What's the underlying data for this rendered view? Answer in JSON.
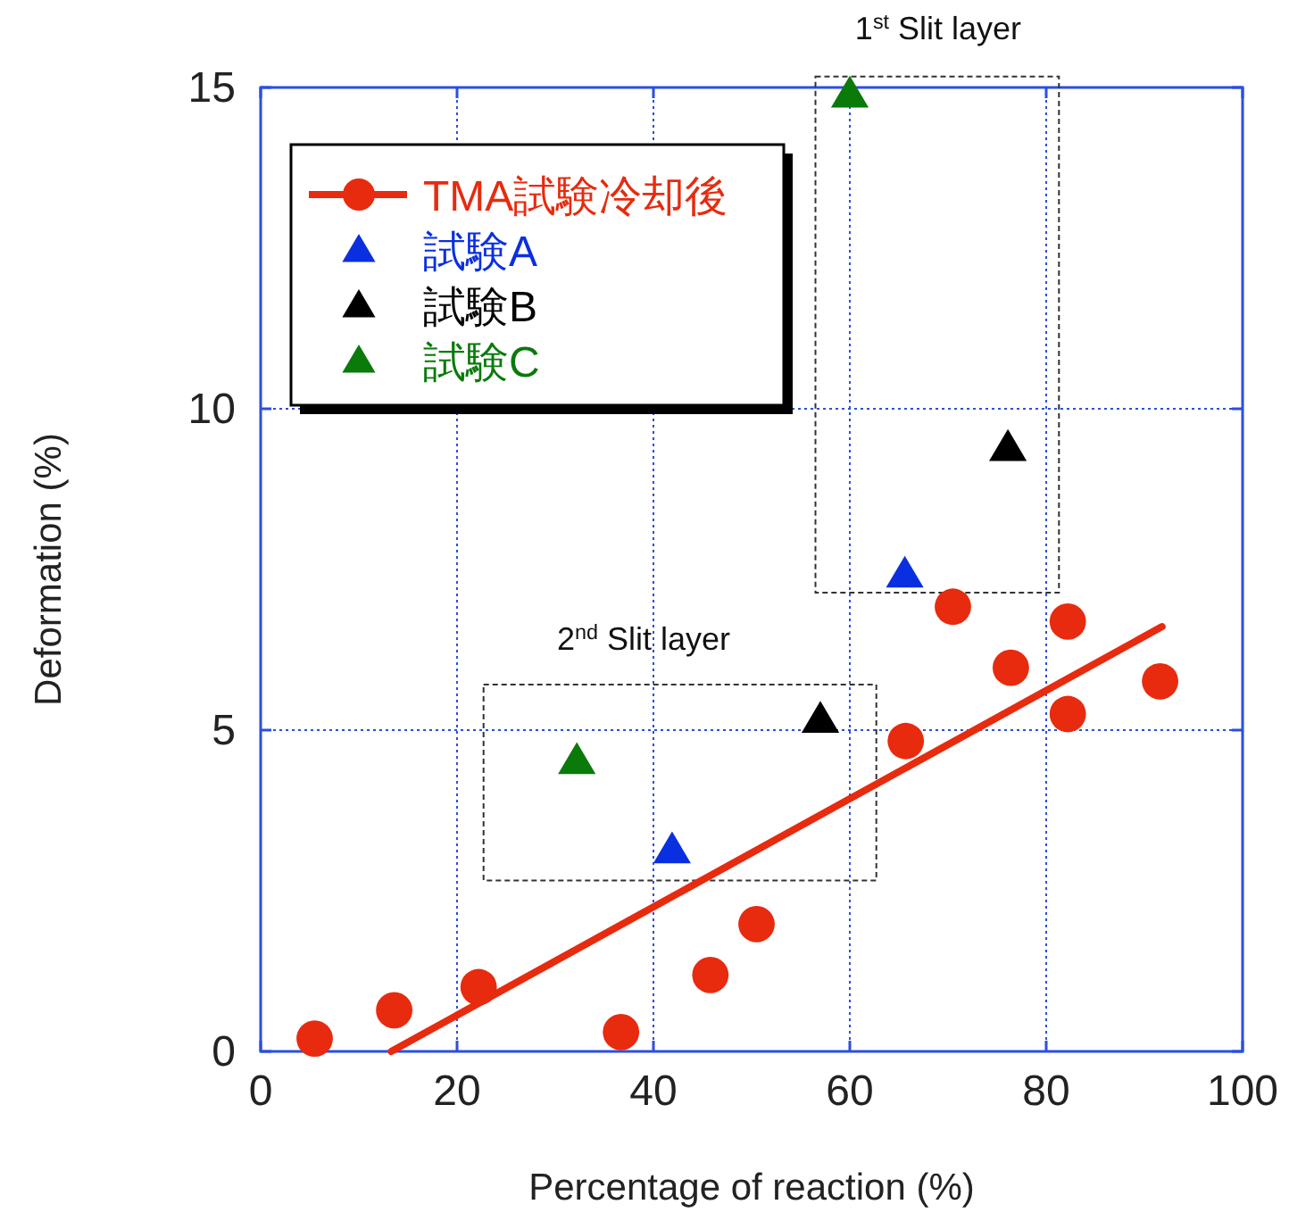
{
  "chart_data": {
    "type": "scatter",
    "xlabel": "Percentage of reaction (%)",
    "ylabel": "Deformation (%)",
    "xlim": [
      0,
      100
    ],
    "xticks": [
      0,
      20,
      40,
      60,
      80,
      100
    ],
    "ylim": [
      0,
      15
    ],
    "yticks": [
      0,
      5,
      10,
      15
    ],
    "grid": true,
    "legend": "top left",
    "annotations": [
      "1$^{st}$ Slit layer",
      "2$^{nd}$ Slit layer"
    ],
    "series": [
      {
        "name": "TMA試験冷却後",
        "marker": "circle",
        "color": "#e82a0e",
        "x": [
          5.5,
          13.6,
          22.2,
          36.7,
          45.8,
          50.5,
          65.7,
          70.5,
          76.4,
          82.2,
          82.2,
          91.6
        ],
        "values": [
          0.2,
          0.64,
          1.0,
          0.3,
          1.19,
          1.98,
          4.83,
          6.92,
          5.97,
          6.69,
          5.25,
          5.76
        ]
      },
      {
        "type": "line",
        "marker": "none",
        "color": "#e82a0e",
        "x": [
          13.3,
          91.8
        ],
        "values": [
          0,
          6.61
        ]
      },
      {
        "name": "試験A",
        "marker": "triangle",
        "color": "#0a2fe0",
        "x": [
          41.9,
          65.6
        ],
        "values": [
          3.14,
          7.43
        ]
      },
      {
        "name": "試験B",
        "marker": "triangle",
        "color": "#000000",
        "x": [
          57.0,
          76.1
        ],
        "values": [
          5.17,
          9.4
        ]
      },
      {
        "name": "試験C",
        "marker": "triangle",
        "color": "#0a7a0a",
        "x": [
          32.2,
          60.0
        ],
        "values": [
          4.53,
          14.9
        ]
      }
    ]
  }
}
